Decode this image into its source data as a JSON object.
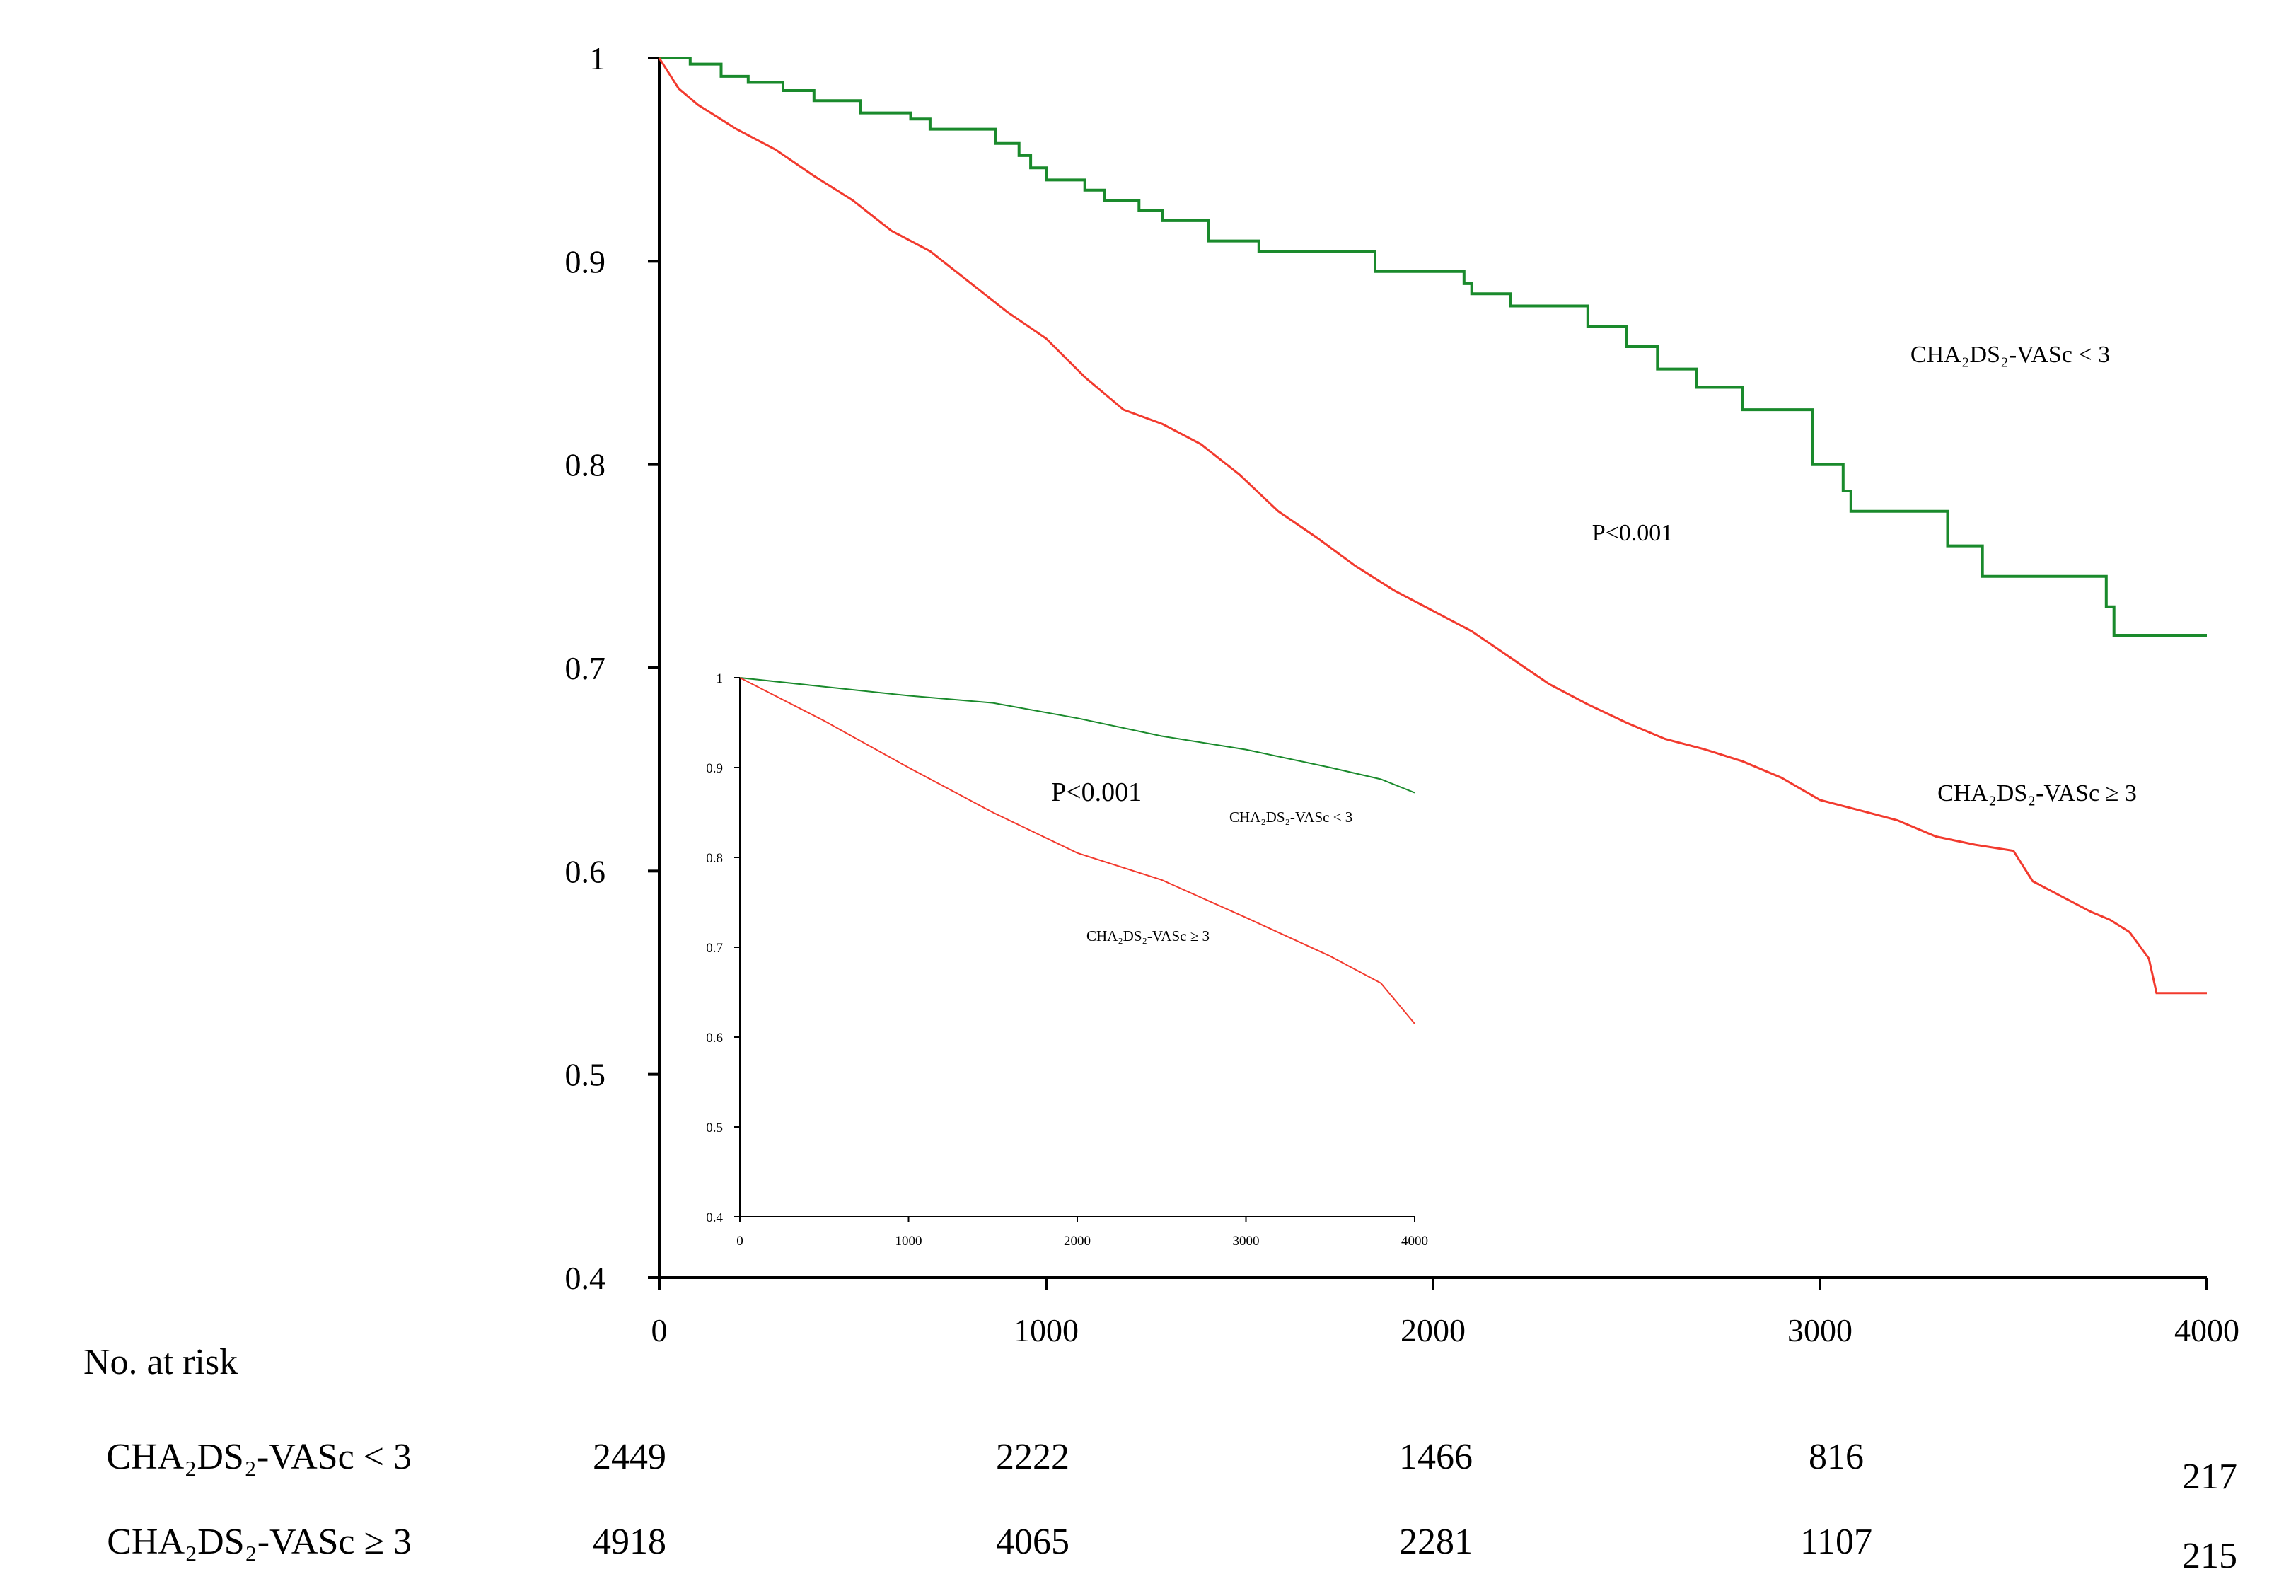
{
  "chart_data": [
    {
      "type": "line",
      "role": "main",
      "title": "",
      "xlabel": "",
      "ylabel": "",
      "xlim": [
        0,
        4000
      ],
      "ylim": [
        0.4,
        1
      ],
      "xticks": [
        0,
        1000,
        2000,
        3000,
        4000
      ],
      "yticks": [
        0.4,
        0.5,
        0.6,
        0.7,
        0.8,
        0.9,
        1
      ],
      "xtick_labels": [
        "0",
        "1000",
        "2000",
        "3000",
        "4000"
      ],
      "ytick_labels": [
        "0.4",
        "0.5",
        "0.6",
        "0.7",
        "0.8",
        "0.9",
        "1"
      ],
      "annotations": {
        "p_value": "P<0.001"
      },
      "series": [
        {
          "name": "CHA₂DS₂-VASc < 3",
          "label": "CHA₂DS₂-VASc < 3",
          "color": "#1a8a2c",
          "step": true,
          "x": [
            0,
            80,
            160,
            230,
            320,
            400,
            520,
            650,
            700,
            870,
            930,
            960,
            1000,
            1100,
            1150,
            1240,
            1300,
            1420,
            1550,
            1850,
            1850,
            2080,
            2100,
            2200,
            2400,
            2500,
            2580,
            2680,
            2800,
            2980,
            3000,
            3060,
            3080,
            3310,
            3330,
            3420,
            3450,
            3740,
            3760,
            4000
          ],
          "y": [
            1.0,
            0.997,
            0.991,
            0.988,
            0.984,
            0.979,
            0.973,
            0.97,
            0.965,
            0.958,
            0.952,
            0.946,
            0.94,
            0.935,
            0.93,
            0.925,
            0.92,
            0.91,
            0.905,
            0.9,
            0.895,
            0.889,
            0.884,
            0.878,
            0.868,
            0.858,
            0.847,
            0.838,
            0.827,
            0.8,
            0.8,
            0.787,
            0.777,
            0.777,
            0.76,
            0.745,
            0.745,
            0.73,
            0.716,
            0.716
          ]
        },
        {
          "name": "CHA₂DS₂-VASc ≥ 3",
          "label": "CHA₂DS₂-VASc ≥ 3",
          "color": "#f23a2e",
          "step": false,
          "x": [
            0,
            50,
            100,
            200,
            300,
            400,
            500,
            600,
            700,
            800,
            900,
            1000,
            1100,
            1200,
            1300,
            1400,
            1500,
            1600,
            1700,
            1800,
            1900,
            2000,
            2100,
            2200,
            2300,
            2400,
            2500,
            2600,
            2700,
            2800,
            2900,
            3000,
            3100,
            3200,
            3300,
            3400,
            3500,
            3550,
            3600,
            3700,
            3750,
            3800,
            3850,
            3870,
            3900,
            4000
          ],
          "y": [
            1.0,
            0.985,
            0.977,
            0.965,
            0.955,
            0.942,
            0.93,
            0.915,
            0.905,
            0.89,
            0.875,
            0.862,
            0.843,
            0.827,
            0.82,
            0.81,
            0.795,
            0.777,
            0.764,
            0.75,
            0.738,
            0.728,
            0.718,
            0.705,
            0.692,
            0.682,
            0.673,
            0.665,
            0.66,
            0.654,
            0.646,
            0.635,
            0.63,
            0.625,
            0.617,
            0.613,
            0.61,
            0.595,
            0.59,
            0.58,
            0.576,
            0.57,
            0.557,
            0.54,
            0.54,
            0.54
          ]
        }
      ]
    },
    {
      "type": "line",
      "role": "inset",
      "title": "",
      "xlim": [
        0,
        4000
      ],
      "ylim": [
        0.4,
        1
      ],
      "xticks": [
        0,
        1000,
        2000,
        3000,
        4000
      ],
      "yticks": [
        0.4,
        0.5,
        0.6,
        0.7,
        0.8,
        0.9,
        1
      ],
      "xtick_labels": [
        "0",
        "1000",
        "2000",
        "3000",
        "4000"
      ],
      "ytick_labels": [
        "0.4",
        "0.5",
        "0.6",
        "0.7",
        "0.8",
        "0.9",
        "1"
      ],
      "annotations": {
        "p_value": "P<0.001"
      },
      "series": [
        {
          "name": "CHA₂DS₂-VASc < 3",
          "label": "CHA₂DS₂-VASc < 3",
          "color": "#1a8a2c",
          "x": [
            0,
            500,
            1000,
            1500,
            2000,
            2500,
            3000,
            3500,
            3800,
            4000
          ],
          "y": [
            1.0,
            0.99,
            0.98,
            0.972,
            0.955,
            0.935,
            0.92,
            0.9,
            0.887,
            0.872
          ]
        },
        {
          "name": "CHA₂DS₂-VASc ≥ 3",
          "label": "CHA₂DS₂-VASc ≥ 3",
          "color": "#f23a2e",
          "x": [
            0,
            500,
            1000,
            1500,
            2000,
            2500,
            3000,
            3500,
            3800,
            4000
          ],
          "y": [
            1.0,
            0.952,
            0.9,
            0.85,
            0.805,
            0.775,
            0.733,
            0.69,
            0.66,
            0.615
          ]
        }
      ]
    }
  ],
  "risk_table": {
    "title": "No. at risk",
    "time_points": [
      0,
      1000,
      2000,
      3000,
      4000
    ],
    "rows": [
      {
        "label": "CHA₂DS₂-VASc < 3",
        "values": [
          "2449",
          "2222",
          "1466",
          "816",
          "217"
        ]
      },
      {
        "label": "CHA₂DS₂-VASc ≥ 3",
        "values": [
          "4918",
          "4065",
          "2281",
          "1107",
          "215"
        ]
      }
    ]
  }
}
